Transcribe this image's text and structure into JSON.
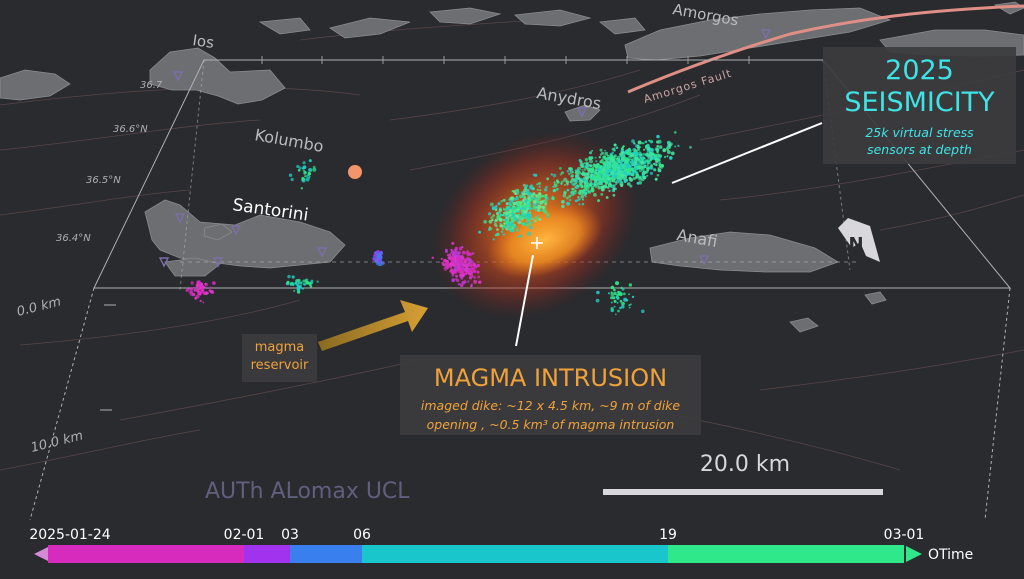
{
  "places": {
    "ios": "Ios",
    "amorgos": "Amorgos",
    "anydros": "Anydros",
    "kolumbo": "Kolumbo",
    "santorini": "Santorini",
    "anafi": "Anafi",
    "amorgos_fault": "Amorgos Fault"
  },
  "latitudes": [
    "36.7",
    "36.6°N",
    "36.5°N",
    "36.4°N"
  ],
  "depths": [
    "0.0 km",
    "10.0 km"
  ],
  "scale_bar": {
    "label": "20.0 km",
    "value_km": 20.0
  },
  "north_arrow": {
    "label": "N",
    "icon": "north-arrow-icon"
  },
  "credit": "AUTh ALomax UCL",
  "seismicity": {
    "year": "2025",
    "title": "SEISMICITY",
    "subtitle_line1": "25k virtual stress",
    "subtitle_line2": "sensors at depth"
  },
  "magma": {
    "title": "MAGMA INTRUSION",
    "subtitle_line1": "imaged dike: ~12 x 4.5 km, ~9 m of  dike",
    "subtitle_line2": "opening , ~0.5 km³ of magma intrusion"
  },
  "reservoir": {
    "line1": "magma",
    "line2": "reservoir"
  },
  "timeline": {
    "axis_label": "OTime",
    "ticks": [
      "2025-01-24",
      "02-01",
      "03",
      "06",
      "19",
      "03-01"
    ],
    "segments": [
      {
        "from": "2025-01-24",
        "to": "02-01",
        "color": "#d62bbd"
      },
      {
        "from": "02-01",
        "to": "03",
        "color": "#a133ee"
      },
      {
        "from": "03",
        "to": "06",
        "color": "#3a7fee"
      },
      {
        "from": "06",
        "to": "19",
        "color": "#19c6cc"
      },
      {
        "from": "19",
        "to": "03-01",
        "color": "#2ee88a"
      }
    ]
  },
  "colors": {
    "background": "#2a2b2e",
    "land": "#6c6e72",
    "seismicity_text": "#3fe3e6",
    "magma_text": "#f0a23a",
    "fault": "#e08f86",
    "kolumbo_marker": "#f4946a"
  }
}
